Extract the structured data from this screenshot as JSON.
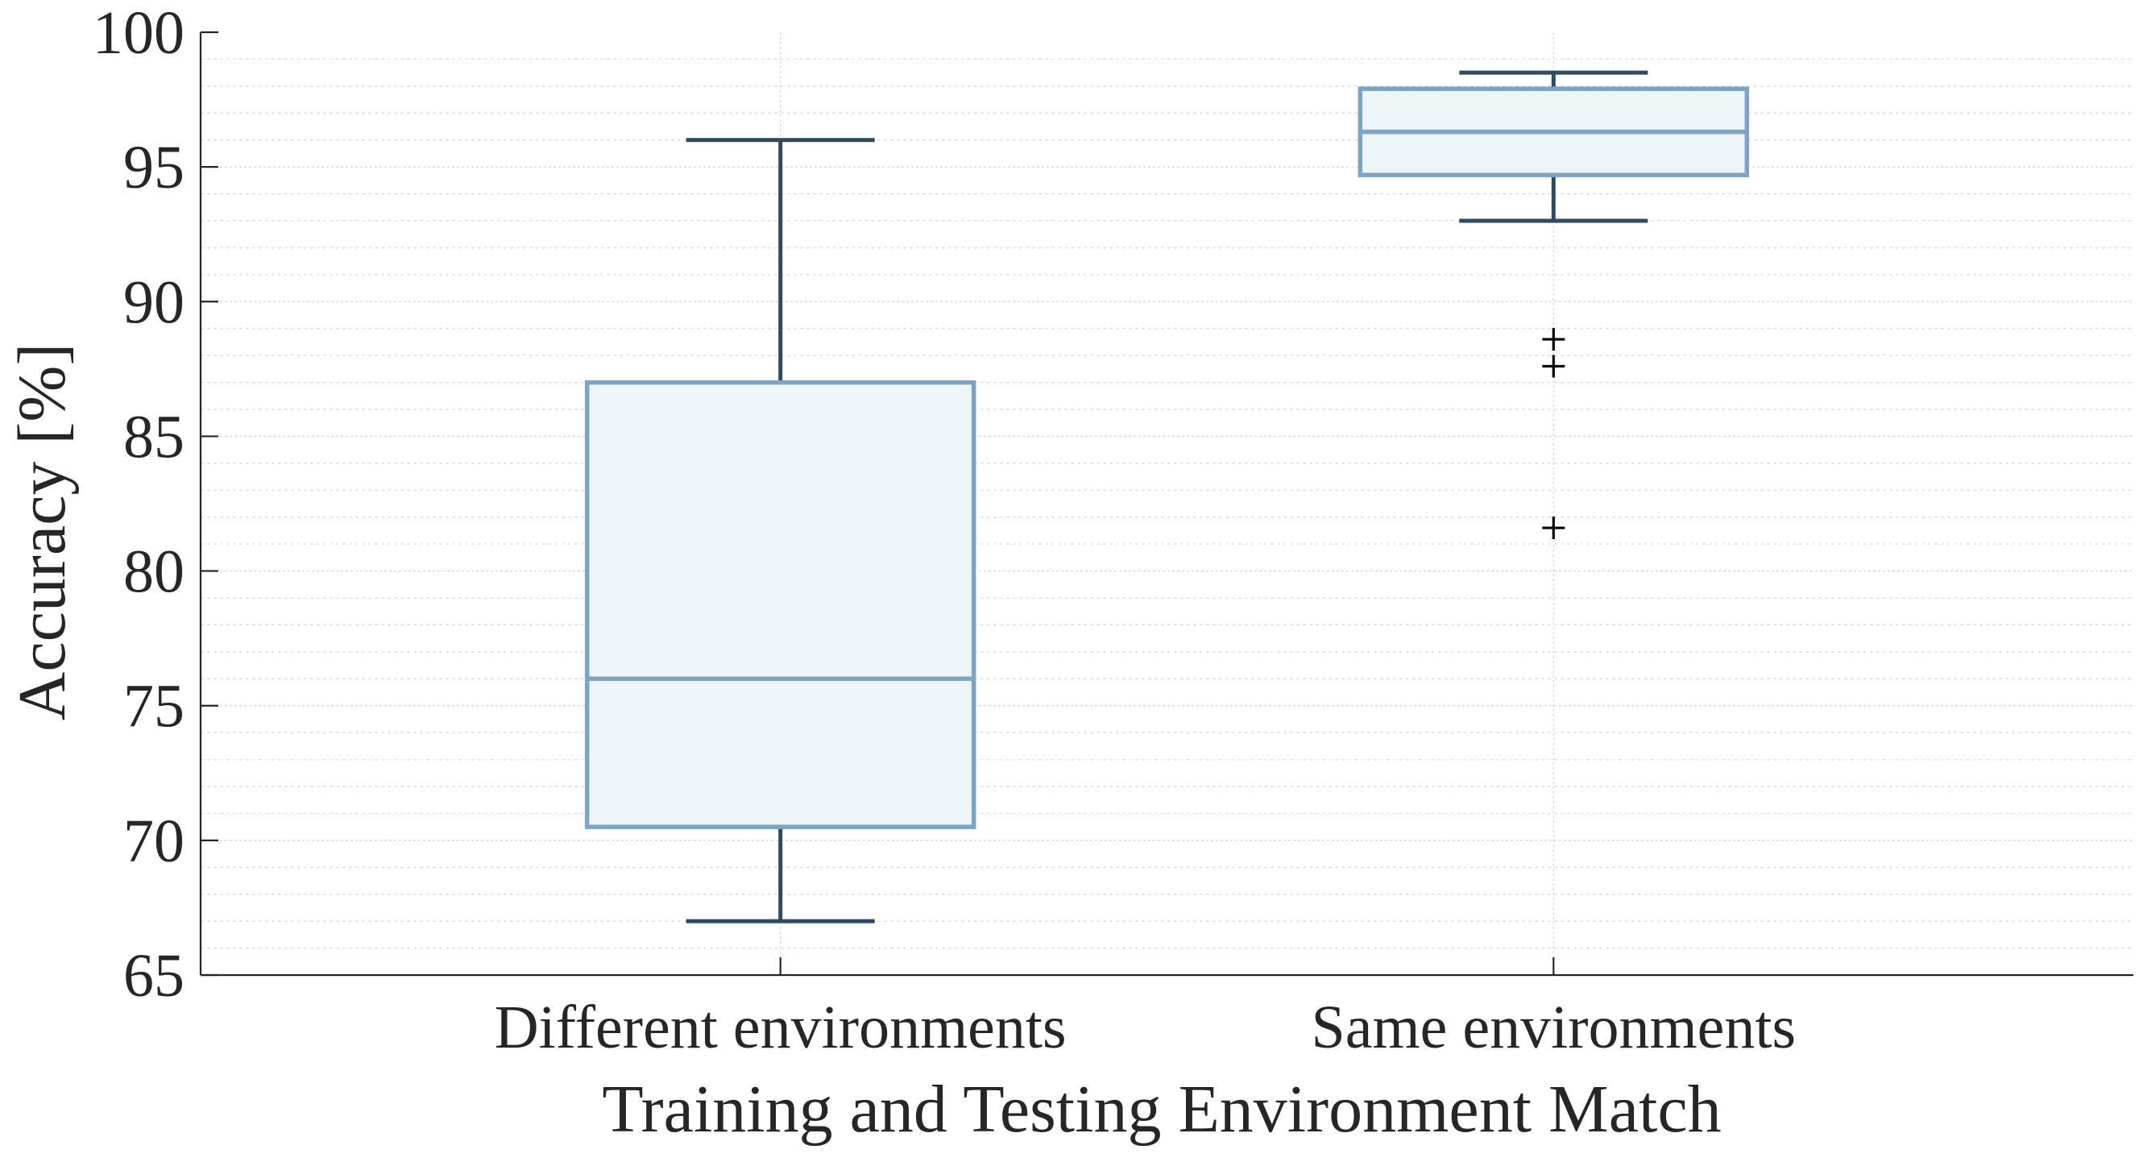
{
  "chart_data": {
    "type": "box",
    "title": "",
    "xlabel": "Training and Testing Environment Match",
    "ylabel": "Accuracy [%]",
    "ylim": [
      65,
      100
    ],
    "yticks": [
      65,
      70,
      75,
      80,
      85,
      90,
      95,
      100
    ],
    "ytick_labels": [
      "65",
      "70",
      "75",
      "80",
      "85",
      "90",
      "95",
      "100"
    ],
    "minor_grid_step": 1,
    "grid": true,
    "categories": [
      "Different environments",
      "Same environments"
    ],
    "boxes": [
      {
        "category": "Different environments",
        "whisker_low": 67,
        "q1": 70.5,
        "median": 76,
        "q3": 87,
        "whisker_high": 96,
        "outliers": []
      },
      {
        "category": "Same environments",
        "whisker_low": 93,
        "q1": 94.7,
        "median": 96.3,
        "q3": 97.9,
        "whisker_high": 98.5,
        "outliers": [
          88.6,
          87.6,
          81.6
        ]
      }
    ],
    "colors": {
      "box_edge": "#7FA3C2",
      "box_fill": "#EEF5F8",
      "whisker": "#2F4A60",
      "outlier": "#000000",
      "axis": "#262626",
      "grid": "#DADADA"
    }
  }
}
